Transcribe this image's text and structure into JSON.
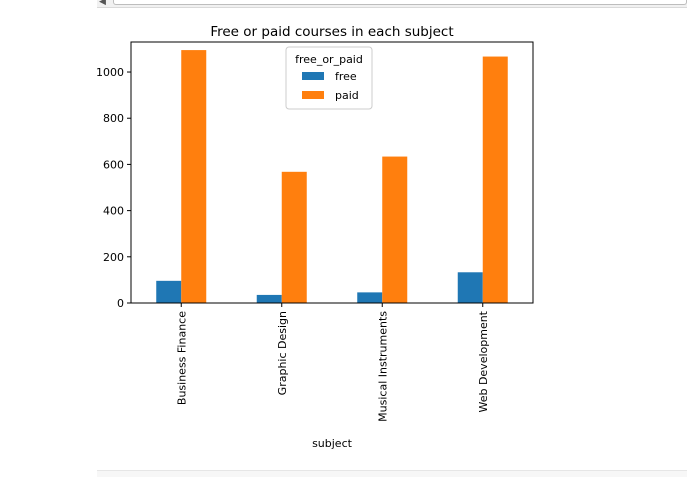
{
  "chart_data": {
    "type": "bar",
    "title": "Free or paid courses in each subject",
    "xlabel": "subject",
    "ylabel": "",
    "categories": [
      "Business Finance",
      "Graphic Design",
      "Musical Instruments",
      "Web Development"
    ],
    "series": [
      {
        "name": "free",
        "color": "#1f77b4",
        "values": [
          96,
          35,
          46,
          133
        ]
      },
      {
        "name": "paid",
        "color": "#ff7f0e",
        "values": [
          1095,
          568,
          634,
          1067
        ]
      }
    ],
    "ylim": [
      0,
      1130
    ],
    "yticks": [
      0,
      200,
      400,
      600,
      800,
      1000
    ],
    "legend": {
      "title": "free_or_paid",
      "placement": "top-center"
    }
  }
}
